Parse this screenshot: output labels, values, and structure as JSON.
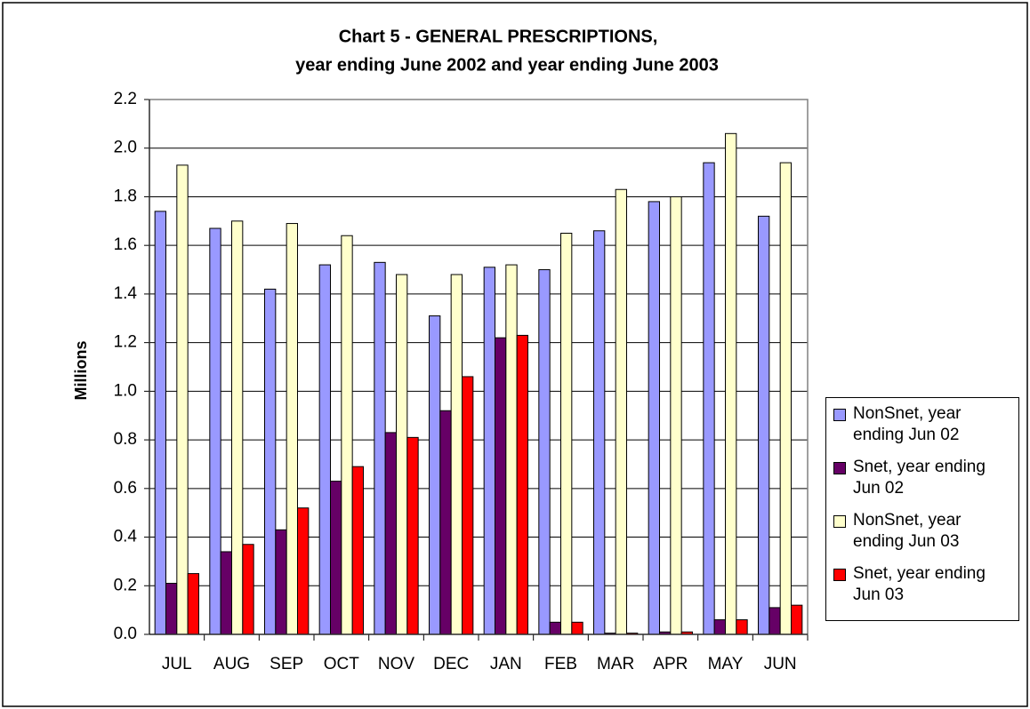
{
  "chart_data": {
    "type": "bar",
    "title": "Chart 5 - GENERAL PRESCRIPTIONS,",
    "subtitle": "year ending June 2002 and year ending June 2003",
    "y_label": "Millions",
    "categories": [
      "JUL",
      "AUG",
      "SEP",
      "OCT",
      "NOV",
      "DEC",
      "JAN",
      "FEB",
      "MAR",
      "APR",
      "MAY",
      "JUN"
    ],
    "series": [
      {
        "name": "NonSnet, year ending Jun 02",
        "color": "#9999ff",
        "values": [
          1.74,
          1.67,
          1.42,
          1.52,
          1.53,
          1.31,
          1.51,
          1.5,
          1.66,
          1.78,
          1.94,
          1.72
        ]
      },
      {
        "name": "Snet, year ending Jun 02",
        "color": "#660066",
        "values": [
          0.21,
          0.34,
          0.43,
          0.63,
          0.83,
          0.92,
          1.22,
          0.05,
          0.005,
          0.01,
          0.06,
          0.11
        ]
      },
      {
        "name": "NonSnet, year ending Jun 03",
        "color": "#ffffcc",
        "values": [
          1.93,
          1.7,
          1.69,
          1.64,
          1.48,
          1.48,
          1.52,
          1.65,
          1.83,
          1.8,
          2.06,
          1.94
        ]
      },
      {
        "name": "Snet, year ending Jun 03",
        "color": "#ff0000",
        "values": [
          0.25,
          0.37,
          0.52,
          0.69,
          0.81,
          1.06,
          1.23,
          0.05,
          0.005,
          0.01,
          0.06,
          0.12
        ]
      }
    ],
    "ylim": [
      0,
      2.2
    ],
    "yticks": [
      {
        "value": 0,
        "label": "0.0"
      },
      0.2,
      0.4,
      0.6,
      0.8,
      {
        "value": 1,
        "label": "1.0"
      },
      1.2,
      1.4,
      1.6,
      1.8,
      {
        "value": 2,
        "label": "2.0"
      },
      2.2
    ],
    "grid": true,
    "legend": "right"
  }
}
